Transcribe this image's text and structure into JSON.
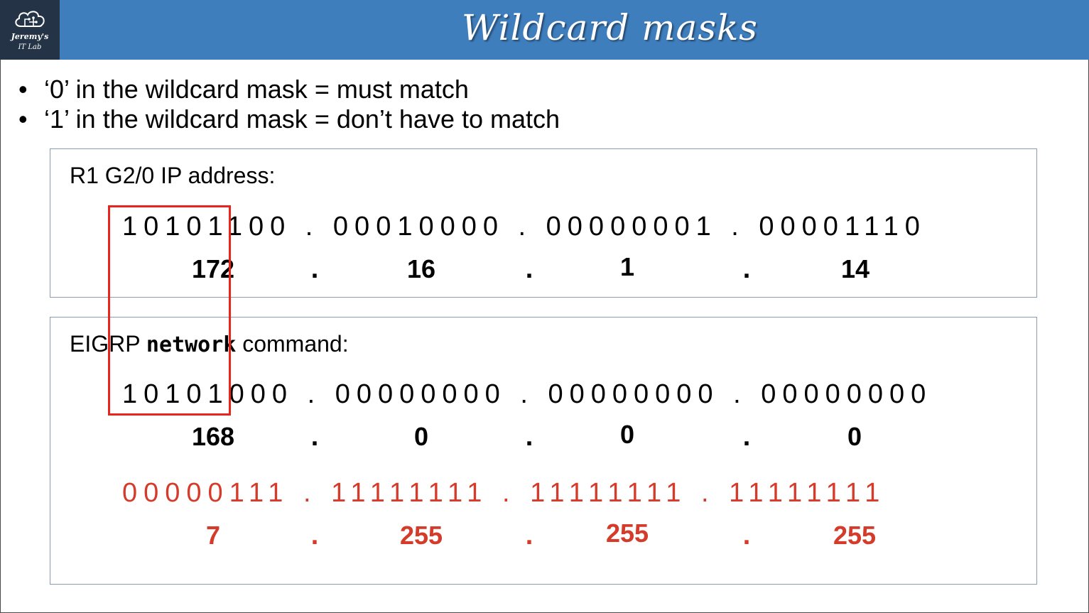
{
  "header": {
    "title": "Wildcard masks",
    "logo": {
      "line1": "Jeremy's",
      "line2": "IT Lab",
      "icon": "cloud-circuit-icon"
    }
  },
  "bullets": [
    "‘0’ in the wildcard mask = must match",
    "‘1’ in the wildcard mask = don’t have to match"
  ],
  "ip_panel": {
    "label": "R1 G2/0 IP address:",
    "binary": "10101100.00010000.00000001.00001110",
    "octets": [
      "172",
      "16",
      "1",
      "14"
    ]
  },
  "network_panel": {
    "label_prefix": "EIGRP ",
    "label_command": "network",
    "label_suffix": " command:",
    "binary": "10101000.00000000.00000000.00000000",
    "octets": [
      "168",
      "0",
      "0",
      "0"
    ],
    "wildcard_binary": "00000111.11111111.11111111.11111111",
    "wildcard_octets": [
      "7",
      "255",
      "255",
      "255"
    ]
  },
  "colors": {
    "header_bg": "#3f7ebd",
    "logo_bg": "#243446",
    "wildcard_text": "#d53b2a",
    "highlight_box": "#e8241c",
    "panel_border": "#8a9cb4"
  },
  "dot": "."
}
